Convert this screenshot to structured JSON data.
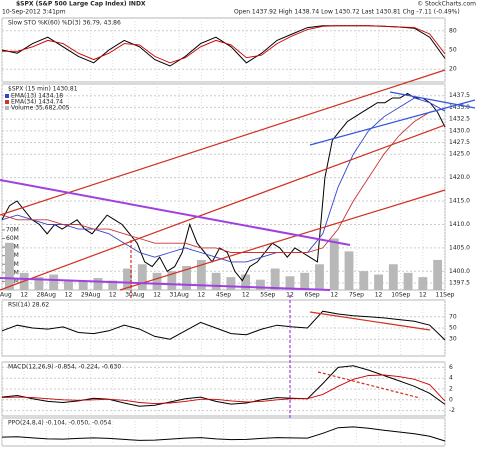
{
  "header": {
    "symbol": "$SPX (S&P 500 Large Cap Index) INDX",
    "date": "10-Sep-2012 3:41pm",
    "quote": "Open 1437.92  High 1438.74  Low 1430.72  Last 1430.81  Chg -7.11 (-0.49%)",
    "credit": "© StockCharts.com"
  },
  "chart_data": [
    {
      "type": "line",
      "title": "Slow STO %K(60) %D(3) 36.79, 43.86",
      "ylim": [
        0,
        100
      ],
      "yticks": [
        20,
        50,
        80
      ],
      "grid": true,
      "series": [
        {
          "color": "#000000",
          "values": [
            50,
            45,
            60,
            70,
            55,
            40,
            30,
            50,
            65,
            55,
            35,
            25,
            40,
            60,
            70,
            55,
            30,
            45,
            65,
            75,
            85,
            88,
            88,
            88,
            88,
            87,
            86,
            84,
            70,
            36.79
          ]
        },
        {
          "color": "#cc0000",
          "values": [
            48,
            48,
            55,
            65,
            60,
            45,
            35,
            45,
            60,
            58,
            40,
            30,
            38,
            55,
            65,
            58,
            38,
            42,
            60,
            72,
            82,
            87,
            88,
            88,
            88,
            87,
            86,
            85,
            75,
            43.86
          ]
        }
      ]
    },
    {
      "type": "line",
      "title": "$SPX (15 min) 1430.81",
      "ylim": [
        1396,
        1440
      ],
      "grid": true,
      "yticks": [
        1397.5,
        {
          "value": 1400,
          "label": "1400.0"
        },
        {
          "value": 1405,
          "label": "1405.0"
        },
        {
          "value": 1410,
          "label": "1410.0"
        },
        {
          "value": 1415,
          "label": "1415.0"
        },
        {
          "value": 1420,
          "label": "1420.0"
        },
        {
          "value": 1425,
          "label": "1425.0"
        },
        1427.5,
        {
          "value": 1430,
          "label": "1430.0"
        },
        1432.5,
        {
          "value": 1435,
          "label": "1435.0"
        },
        1437.5
      ],
      "y2lim": [
        0,
        240000000
      ],
      "y2ticks": [
        {
          "value": 10000000,
          "label": "10M"
        },
        {
          "value": 20000000,
          "label": "20M"
        },
        {
          "value": 30000000,
          "label": "30M"
        },
        {
          "value": 40000000,
          "label": "40M"
        },
        {
          "value": 50000000,
          "label": "50M"
        },
        {
          "value": 60000000,
          "label": "60M"
        },
        {
          "value": 70000000,
          "label": "70M"
        }
      ],
      "xlabels": [
        "27Aug",
        "12",
        "28Aug",
        "12",
        "29Aug",
        "12",
        "30Aug",
        "12",
        "31Aug",
        "12",
        "4Sep",
        "12",
        "5Sep",
        "12",
        "6Sep",
        "12",
        "7Sep",
        "12",
        "10Sep",
        "12",
        "11Sep"
      ],
      "series": [
        {
          "type": "line",
          "color": "#000000",
          "values": [
            1411,
            1414,
            1415,
            1413,
            1411,
            1410,
            1408,
            1410,
            1409,
            1410,
            1411,
            1409,
            1408,
            1410,
            1412,
            1411,
            1410,
            1408,
            1406,
            1402,
            1401,
            1403,
            1400,
            1401,
            1404,
            1410,
            1406,
            1404,
            1402,
            1405,
            1404,
            1400,
            1398,
            1401,
            1402,
            1404,
            1406,
            1405,
            1403,
            1405,
            1404,
            1403,
            1402,
            1420,
            1428,
            1430,
            1432,
            1433,
            1434,
            1435,
            1436,
            1436,
            1437,
            1437,
            1438,
            1437,
            1437,
            1436,
            1434,
            1430.81
          ]
        },
        {
          "type": "line",
          "name": "EMA(13) 1434.18",
          "color": "#3344cc",
          "values": [
            1411,
            1412,
            1411,
            1410,
            1410,
            1409,
            1409,
            1408,
            1406,
            1404,
            1403,
            1404,
            1405,
            1404,
            1403,
            1402,
            1402,
            1403,
            1404,
            1404,
            1404,
            1408,
            1418,
            1425,
            1430,
            1433,
            1435,
            1437,
            1436,
            1434.18
          ]
        },
        {
          "type": "line",
          "name": "EMA(34) 1434.74",
          "color": "#cc3333",
          "values": [
            1412,
            1411,
            1411,
            1411,
            1410,
            1410,
            1409,
            1409,
            1408,
            1407,
            1406,
            1406,
            1406,
            1405,
            1405,
            1404,
            1404,
            1404,
            1404,
            1404,
            1404,
            1405,
            1409,
            1415,
            1420,
            1425,
            1429,
            1432,
            1434,
            1434.74
          ]
        },
        {
          "type": "bar",
          "axis": "y2",
          "name": "Volume 35,682,005",
          "color": "#b8b8b8",
          "values": [
            55000000,
            20000000,
            15000000,
            18000000,
            12000000,
            10000000,
            14000000,
            11000000,
            25000000,
            30000000,
            20000000,
            22000000,
            28000000,
            35000000,
            20000000,
            15000000,
            18000000,
            12000000,
            25000000,
            16000000,
            20000000,
            30000000,
            60000000,
            45000000,
            22000000,
            18000000,
            30000000,
            20000000,
            15000000,
            35000000
          ]
        }
      ]
    },
    {
      "type": "line",
      "title": "RSI(14) 28.62",
      "ylim": [
        0,
        100
      ],
      "yticks": [
        30,
        50,
        70
      ],
      "grid": true,
      "series": [
        {
          "color": "#000000",
          "values": [
            45,
            55,
            50,
            48,
            52,
            42,
            40,
            45,
            55,
            48,
            35,
            30,
            45,
            60,
            50,
            40,
            38,
            48,
            55,
            52,
            50,
            80,
            75,
            72,
            70,
            68,
            65,
            62,
            55,
            28.62
          ]
        }
      ]
    },
    {
      "type": "line",
      "title": "MACD(12,26,9) -0.854, -0.224, -0.630",
      "ylim": [
        -3,
        7
      ],
      "yticks": [
        -2,
        0,
        2,
        4,
        6
      ],
      "grid": true,
      "series": [
        {
          "color": "#000000",
          "values": [
            0.5,
            0.8,
            0.2,
            -0.3,
            -0.5,
            -0.2,
            0.3,
            0.1,
            -0.6,
            -1.2,
            -1,
            -0.4,
            0.2,
            0.5,
            -0.3,
            -0.8,
            -0.6,
            0,
            0.4,
            0.3,
            0.2,
            3,
            6,
            6.3,
            5.5,
            4.5,
            3.5,
            2.5,
            1.2,
            -0.854
          ]
        },
        {
          "color": "#cc0000",
          "values": [
            0.4,
            0.5,
            0.4,
            0.2,
            0,
            -0.1,
            0,
            0.1,
            -0.1,
            -0.5,
            -0.7,
            -0.6,
            -0.3,
            0.1,
            0.1,
            -0.2,
            -0.4,
            -0.3,
            0,
            0.2,
            0.2,
            1,
            2.5,
            3.8,
            4.5,
            4.6,
            4.3,
            3.8,
            2.8,
            -0.224
          ]
        }
      ]
    },
    {
      "type": "line",
      "title": "PPO(24,8,4) -0.104, -0.050, -0.054",
      "ylim": [
        -0.3,
        0.8
      ],
      "yticks": [],
      "grid": false,
      "series": [
        {
          "color": "#000000",
          "values": [
            0.05,
            0.06,
            0.02,
            -0.02,
            -0.03,
            0,
            0.02,
            0,
            -0.04,
            -0.08,
            -0.07,
            -0.03,
            0.01,
            0.03,
            -0.02,
            -0.05,
            -0.04,
            0,
            0.03,
            0.02,
            0.01,
            0.2,
            0.42,
            0.45,
            0.4,
            0.32,
            0.25,
            0.18,
            0.08,
            -0.104
          ]
        }
      ]
    }
  ]
}
